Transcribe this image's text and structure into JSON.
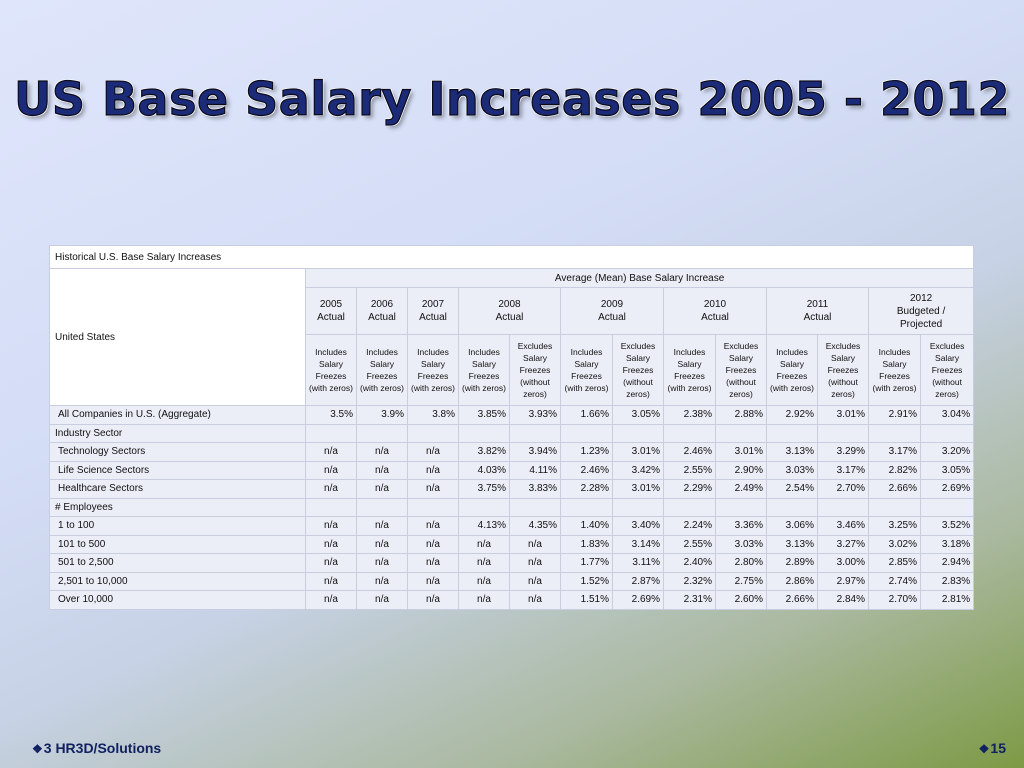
{
  "slide": {
    "title": "US Base Salary Increases 2005 - 2012",
    "footer_left": "3 HR3D/Solutions",
    "footer_right": "15",
    "bullet_icon": "diamond-bullet-icon"
  },
  "table": {
    "caption": "Historical U.S. Base Salary Increases",
    "row_header_label": "United States",
    "group_header": "Average (Mean) Base Salary Increase",
    "years": [
      {
        "label": "2005\nActual",
        "span": 1
      },
      {
        "label": "2006\nActual",
        "span": 1
      },
      {
        "label": "2007\nActual",
        "span": 1
      },
      {
        "label": "2008\nActual",
        "span": 2
      },
      {
        "label": "2009\nActual",
        "span": 2
      },
      {
        "label": "2010\nActual",
        "span": 2
      },
      {
        "label": "2011\nActual",
        "span": 2
      },
      {
        "label": "2012\nBudgeted /\nProjected",
        "span": 2
      }
    ],
    "subheaders": [
      "Includes Salary Freezes (with zeros)",
      "Includes Salary Freezes (with zeros)",
      "Includes Salary Freezes (with zeros)",
      "Includes Salary Freezes (with zeros)",
      "Excludes Salary Freezes (without zeros)",
      "Includes Salary Freezes (with zeros)",
      "Excludes Salary Freezes (without zeros)",
      "Includes Salary Freezes (with zeros)",
      "Excludes Salary Freezes (without zeros)",
      "Includes Salary Freezes (with zeros)",
      "Excludes Salary Freezes (without zeros)",
      "Includes Salary Freezes (with zeros)",
      "Excludes Salary Freezes (without zeros)"
    ],
    "rows": [
      {
        "label": "All Companies in U.S. (Aggregate)",
        "section": false,
        "values": [
          "3.5%",
          "3.9%",
          "3.8%",
          "3.85%",
          "3.93%",
          "1.66%",
          "3.05%",
          "2.38%",
          "2.88%",
          "2.92%",
          "3.01%",
          "2.91%",
          "3.04%"
        ]
      },
      {
        "label": "Industry Sector",
        "section": true,
        "values": []
      },
      {
        "label": "Technology Sectors",
        "section": false,
        "values": [
          "n/a",
          "n/a",
          "n/a",
          "3.82%",
          "3.94%",
          "1.23%",
          "3.01%",
          "2.46%",
          "3.01%",
          "3.13%",
          "3.29%",
          "3.17%",
          "3.20%"
        ]
      },
      {
        "label": "Life Science Sectors",
        "section": false,
        "values": [
          "n/a",
          "n/a",
          "n/a",
          "4.03%",
          "4.11%",
          "2.46%",
          "3.42%",
          "2.55%",
          "2.90%",
          "3.03%",
          "3.17%",
          "2.82%",
          "3.05%"
        ]
      },
      {
        "label": "Healthcare Sectors",
        "section": false,
        "values": [
          "n/a",
          "n/a",
          "n/a",
          "3.75%",
          "3.83%",
          "2.28%",
          "3.01%",
          "2.29%",
          "2.49%",
          "2.54%",
          "2.70%",
          "2.66%",
          "2.69%"
        ]
      },
      {
        "label": "# Employees",
        "section": true,
        "values": []
      },
      {
        "label": "1 to 100",
        "section": false,
        "values": [
          "n/a",
          "n/a",
          "n/a",
          "4.13%",
          "4.35%",
          "1.40%",
          "3.40%",
          "2.24%",
          "3.36%",
          "3.06%",
          "3.46%",
          "3.25%",
          "3.52%"
        ]
      },
      {
        "label": "101 to 500",
        "section": false,
        "values": [
          "n/a",
          "n/a",
          "n/a",
          "n/a",
          "n/a",
          "1.83%",
          "3.14%",
          "2.55%",
          "3.03%",
          "3.13%",
          "3.27%",
          "3.02%",
          "3.18%"
        ]
      },
      {
        "label": "501 to 2,500",
        "section": false,
        "values": [
          "n/a",
          "n/a",
          "n/a",
          "n/a",
          "n/a",
          "1.77%",
          "3.11%",
          "2.40%",
          "2.80%",
          "2.89%",
          "3.00%",
          "2.85%",
          "2.94%"
        ]
      },
      {
        "label": "2,501 to 10,000",
        "section": false,
        "values": [
          "n/a",
          "n/a",
          "n/a",
          "n/a",
          "n/a",
          "1.52%",
          "2.87%",
          "2.32%",
          "2.75%",
          "2.86%",
          "2.97%",
          "2.74%",
          "2.83%"
        ]
      },
      {
        "label": "Over 10,000",
        "section": false,
        "values": [
          "n/a",
          "n/a",
          "n/a",
          "n/a",
          "n/a",
          "1.51%",
          "2.69%",
          "2.31%",
          "2.60%",
          "2.66%",
          "2.84%",
          "2.70%",
          "2.81%"
        ]
      }
    ]
  }
}
